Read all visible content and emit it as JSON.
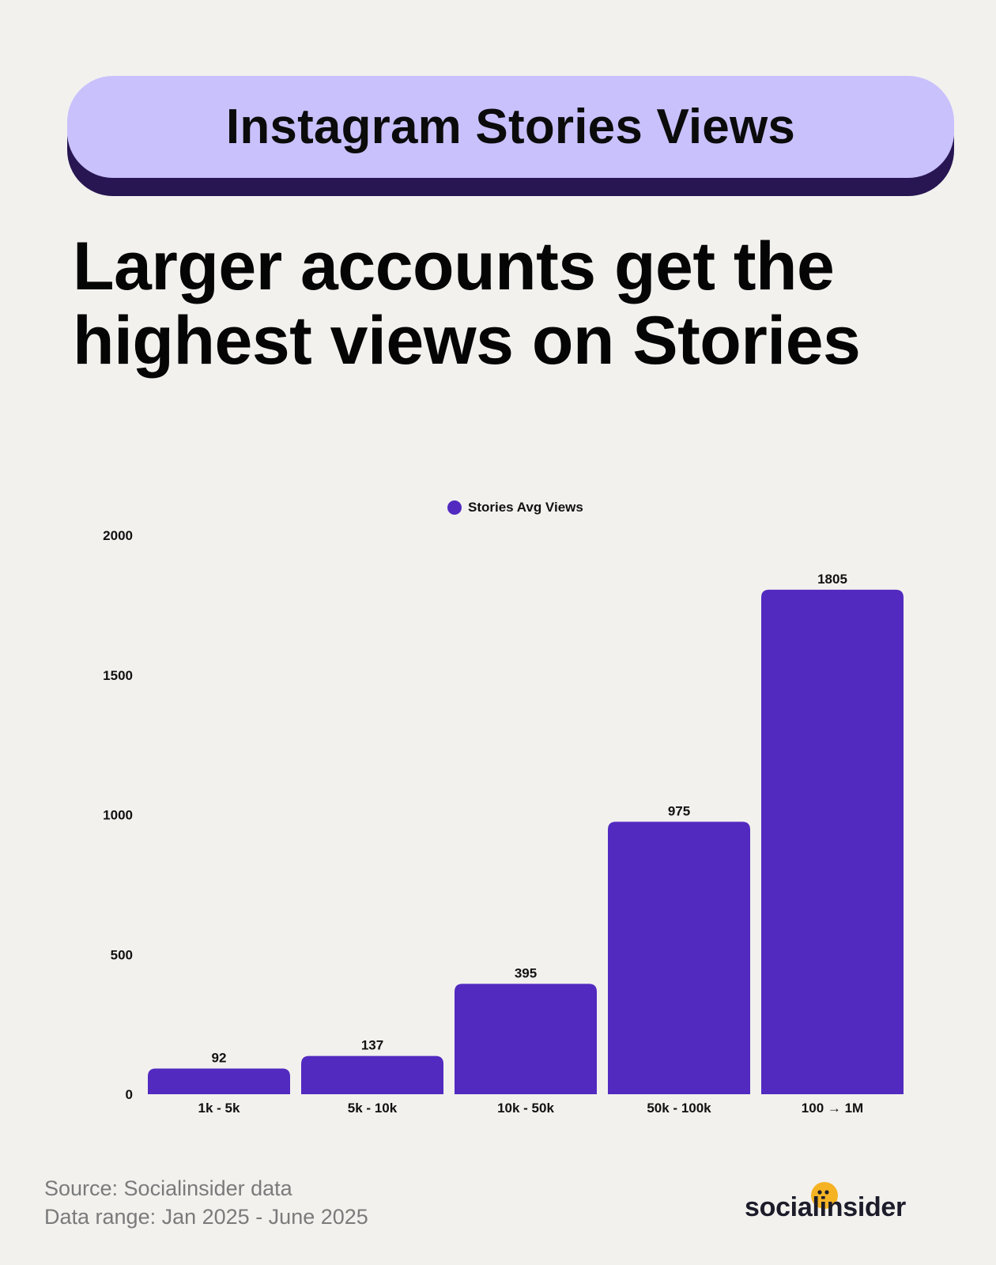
{
  "header": {
    "pill_title": "Instagram Stories Views",
    "headline_line1": "Larger accounts get the",
    "headline_line2": "highest views on Stories"
  },
  "colors": {
    "background": "#f2f1ee",
    "pill": "#c9c1fc",
    "pill_shadow": "#271652",
    "bar": "#522ac0",
    "brand_dot": "#f5b324"
  },
  "chart_data": {
    "type": "bar",
    "categories": [
      "1k - 5k",
      "5k - 10k",
      "10k - 50k",
      "50k - 100k",
      "100 → 1M"
    ],
    "series": [
      {
        "name": "Stories Avg Views",
        "values": [
          92,
          137,
          395,
          975,
          1805
        ]
      }
    ],
    "ylim": [
      0,
      2000
    ],
    "yticks": [
      0,
      500,
      1000,
      1500,
      2000
    ],
    "data_labels": [
      "92",
      "137",
      "395",
      "975",
      "1805"
    ],
    "legend_position": "top-center",
    "grid": false,
    "xlabel": "",
    "ylabel": ""
  },
  "footer": {
    "source": "Source: Socialinsider data",
    "range": "Data range: Jan 2025 - June 2025",
    "brand": "socialinsider"
  }
}
